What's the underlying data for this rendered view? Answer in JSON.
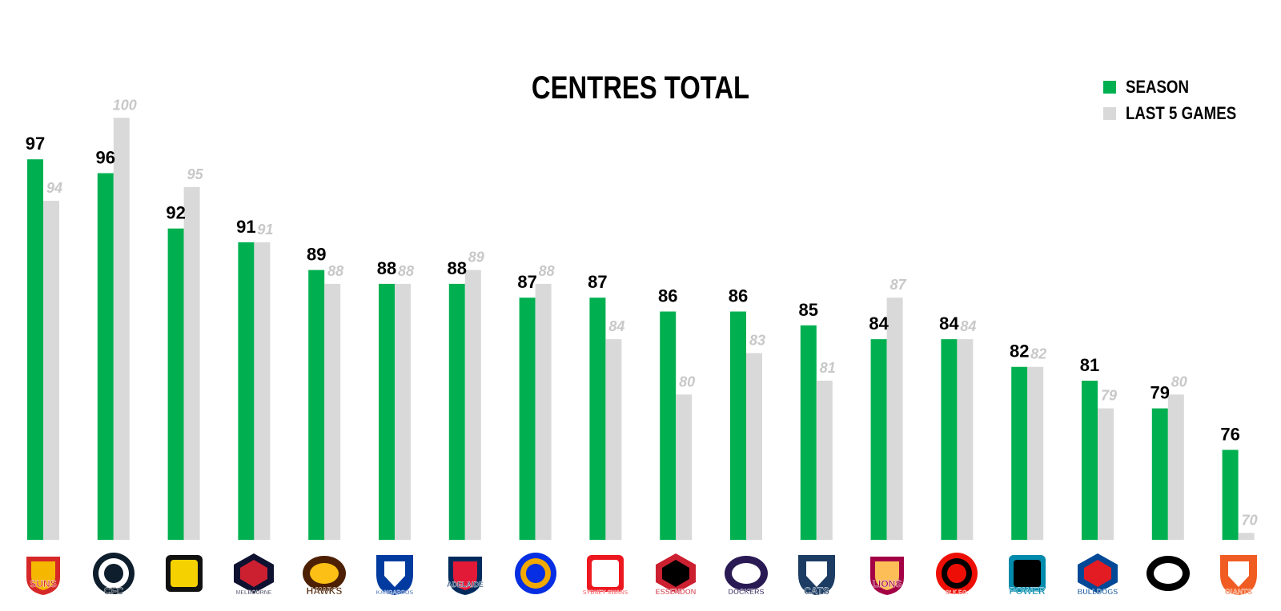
{
  "chart_data": {
    "type": "bar",
    "title": "CENTRES TOTAL",
    "categories": [
      "SUNS",
      "CARLTON",
      "TIGERS",
      "MELBOURNE",
      "HAWKS",
      "KANGAROOS",
      "ADELAIDE CROWS",
      "EAGLES",
      "SYDNEY SWANS",
      "ESSENDON",
      "DOCKERS",
      "CATS",
      "LIONS",
      "ST K.F.C.",
      "POWER",
      "BULLDOGS",
      "MAGPIES",
      "GIANTS"
    ],
    "series": [
      {
        "name": "SEASON",
        "color": "#00b050",
        "values": [
          97,
          96,
          92,
          91,
          89,
          88,
          88,
          87,
          87,
          86,
          86,
          85,
          84,
          84,
          82,
          81,
          79,
          76
        ]
      },
      {
        "name": "LAST 5 GAMES",
        "color": "#d9d9d9",
        "values": [
          94,
          100,
          95,
          91,
          88,
          88,
          89,
          88,
          84,
          80,
          83,
          81,
          87,
          84,
          82,
          79,
          80,
          70
        ]
      }
    ],
    "xlabel": "",
    "ylabel": "",
    "ylim": [
      69.5,
      101
    ],
    "legend_position": "top-right",
    "grid": false
  },
  "logos": [
    {
      "icon": "suns-logo-icon",
      "text": "SUNS",
      "primary": "#d62828",
      "secondary": "#f5b700"
    },
    {
      "icon": "carlton-logo-icon",
      "text": "CFC",
      "primary": "#0e1e2d",
      "secondary": "#ffffff"
    },
    {
      "icon": "tigers-logo-icon",
      "text": "",
      "primary": "#111111",
      "secondary": "#f5d100"
    },
    {
      "icon": "melbourne-logo-icon",
      "text": "MELBOURNE",
      "primary": "#0f1131",
      "secondary": "#cc2031"
    },
    {
      "icon": "hawks-logo-icon",
      "text": "HAWKS",
      "primary": "#4d2004",
      "secondary": "#fbbf15"
    },
    {
      "icon": "kangaroos-logo-icon",
      "text": "KANGAROOS",
      "primary": "#013b9f",
      "secondary": "#ffffff"
    },
    {
      "icon": "crows-logo-icon",
      "text": "ADELAIDE",
      "primary": "#002b5c",
      "secondary": "#e21937"
    },
    {
      "icon": "eagles-logo-icon",
      "text": "",
      "primary": "#062ee2",
      "secondary": "#f2a900"
    },
    {
      "icon": "swans-logo-icon",
      "text": "SYDNEY SWANS",
      "primary": "#ed171f",
      "secondary": "#ffffff"
    },
    {
      "icon": "essendon-logo-icon",
      "text": "ESSENDON",
      "primary": "#cc2031",
      "secondary": "#000000"
    },
    {
      "icon": "dockers-logo-icon",
      "text": "DOCKERS",
      "primary": "#2a1a54",
      "secondary": "#ffffff"
    },
    {
      "icon": "cats-logo-icon",
      "text": "CATS",
      "primary": "#1c3c63",
      "secondary": "#ffffff"
    },
    {
      "icon": "lions-logo-icon",
      "text": "LIONS",
      "primary": "#a30046",
      "secondary": "#fdbe57"
    },
    {
      "icon": "stkilda-logo-icon",
      "text": "St K.F.C.",
      "primary": "#ed0f05",
      "secondary": "#000000"
    },
    {
      "icon": "power-logo-icon",
      "text": "POWER",
      "primary": "#008aab",
      "secondary": "#000000"
    },
    {
      "icon": "bulldogs-logo-icon",
      "text": "BULLDOGS",
      "primary": "#014896",
      "secondary": "#e31b23"
    },
    {
      "icon": "magpies-logo-icon",
      "text": "",
      "primary": "#000000",
      "secondary": "#ffffff"
    },
    {
      "icon": "giants-logo-icon",
      "text": "GIANTS",
      "primary": "#f15c22",
      "secondary": "#ffffff"
    }
  ]
}
